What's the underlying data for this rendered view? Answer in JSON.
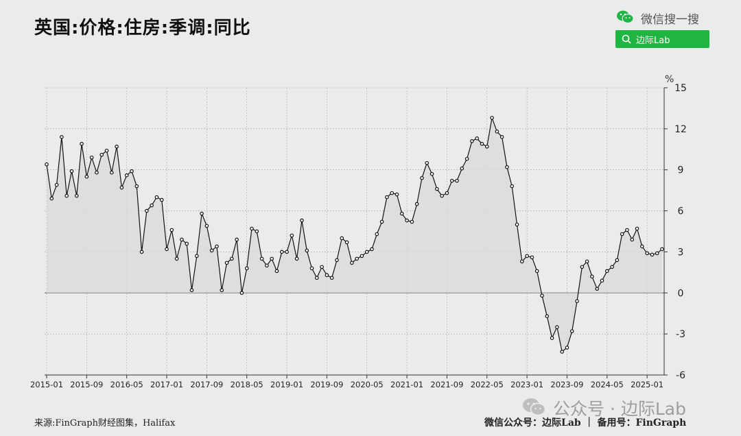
{
  "header": {
    "title": "英国:价格:住房:季调:同比"
  },
  "brand": {
    "wechat_label": "微信搜一搜",
    "search_label": "边际Lab"
  },
  "footer": {
    "source": "来源:FinGraph财经图集，Halifax",
    "account": "微信公众号：边际Lab ｜ 备用号：FinGraph"
  },
  "watermark": {
    "text": "公众号 · 边际Lab"
  },
  "colors": {
    "line": "#111111",
    "fill": "#d9d9d9",
    "search_bg": "#20b543",
    "grid": "#aaaaaa"
  },
  "chart_data": {
    "type": "area",
    "unit_label": "%",
    "start": "2015-01",
    "x_ticks": [
      "2015-01",
      "2015-09",
      "2016-05",
      "2017-01",
      "2017-09",
      "2018-05",
      "2019-01",
      "2019-09",
      "2020-05",
      "2021-01",
      "2021-09",
      "2022-05",
      "2023-01",
      "2023-09",
      "2024-05",
      "2025-01"
    ],
    "y_ticks": [
      15,
      12,
      9,
      6,
      3,
      0,
      -3,
      -6
    ],
    "ylim": [
      -6,
      15
    ],
    "y_axis_position": "right",
    "grid": true,
    "values": [
      9.4,
      6.9,
      7.9,
      11.4,
      7.1,
      8.9,
      7.1,
      10.9,
      8.5,
      9.9,
      8.8,
      10.1,
      10.4,
      8.8,
      10.7,
      7.7,
      8.6,
      8.9,
      7.8,
      3.0,
      6.0,
      6.4,
      7.0,
      6.8,
      3.2,
      4.6,
      2.5,
      3.9,
      3.6,
      0.2,
      2.7,
      5.8,
      4.9,
      3.1,
      3.4,
      0.2,
      2.2,
      2.5,
      3.9,
      0.0,
      1.8,
      4.7,
      4.5,
      2.5,
      2.0,
      2.5,
      1.6,
      3.0,
      3.0,
      4.2,
      2.5,
      5.3,
      3.1,
      1.8,
      1.1,
      1.9,
      1.3,
      1.1,
      2.4,
      4.0,
      3.7,
      2.2,
      2.5,
      2.7,
      3.0,
      3.2,
      4.3,
      5.2,
      7.0,
      7.3,
      7.2,
      5.8,
      5.3,
      5.2,
      6.5,
      8.4,
      9.5,
      8.7,
      7.6,
      7.1,
      7.3,
      8.2,
      8.2,
      9.1,
      9.8,
      11.1,
      11.3,
      10.9,
      10.7,
      12.8,
      11.8,
      11.4,
      9.2,
      7.8,
      5.0,
      2.3,
      2.7,
      2.6,
      1.6,
      -0.2,
      -1.7,
      -3.3,
      -2.5,
      -4.3,
      -4.0,
      -2.8,
      -0.6,
      1.9,
      2.3,
      1.2,
      0.3,
      0.9,
      1.6,
      1.9,
      2.4,
      4.3,
      4.6,
      3.9,
      4.7,
      3.4,
      2.9,
      2.8,
      2.9,
      3.2
    ]
  }
}
